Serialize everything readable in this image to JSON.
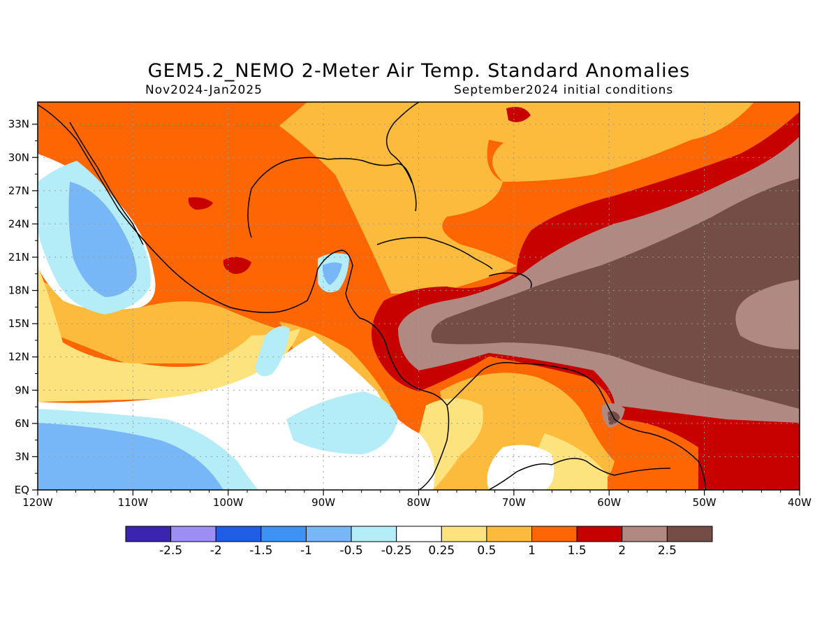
{
  "title": "GEM5.2_NEMO 2-Meter Air Temp. Standard Anomalies",
  "period": "Nov2024-Jan2025",
  "init": "September2024 initial conditions",
  "colors": {
    "d1": "#3a24b0",
    "d2": "#9d8ef5",
    "d3": "#1e5de6",
    "d4": "#3c93f5",
    "d5": "#78b7f7",
    "d6": "#b4ecf8",
    "neutral": "#ffffff",
    "w1": "#fde37e",
    "w2": "#fdbb3d",
    "w3": "#fd6602",
    "w4": "#c70000",
    "w5": "#b08a82",
    "w6": "#744e46"
  },
  "map": {
    "lon_ticks": [
      "120W",
      "110W",
      "100W",
      "90W",
      "80W",
      "70W",
      "60W",
      "50W",
      "40W"
    ],
    "lat_ticks": [
      "EQ",
      "3N",
      "6N",
      "9N",
      "12N",
      "15N",
      "18N",
      "21N",
      "24N",
      "27N",
      "30N",
      "33N"
    ]
  },
  "colorbar": {
    "labels": [
      "-2.5",
      "-2",
      "-1.5",
      "-1",
      "-0.5",
      "-0.25",
      "0.25",
      "0.5",
      "1",
      "1.5",
      "2",
      "2.5"
    ],
    "swatches": [
      "d1",
      "d2",
      "d3",
      "d4",
      "d5",
      "d6",
      "neutral",
      "w1",
      "w2",
      "w3",
      "w4",
      "w5",
      "w6"
    ]
  }
}
